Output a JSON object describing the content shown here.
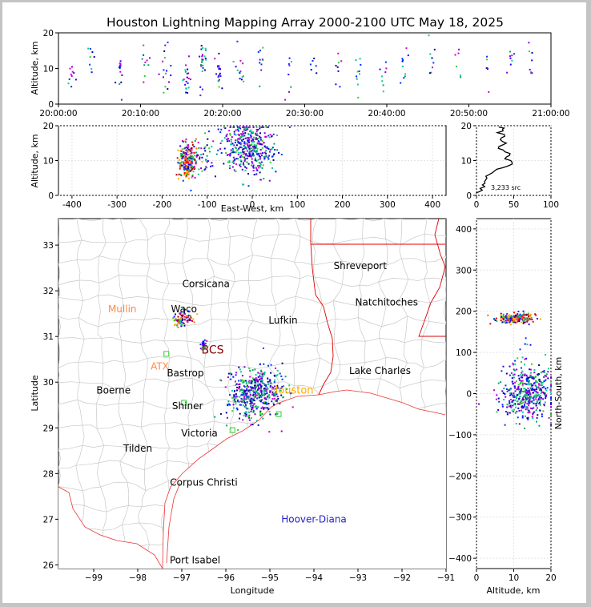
{
  "title": "Houston Lightning Mapping Array 2000-2100 UTC May 18, 2025",
  "colors": {
    "border": "#c4c4c4",
    "county": "#c8c8c8",
    "state": "#dd0000",
    "coast": "#ee2222",
    "grid": "#dddddd",
    "stations_green": "#33cc33",
    "stations_orange": "#ff8844",
    "hoover": "#2222cc",
    "source_palette": [
      "#2200ff",
      "#0033ff",
      "#00aa66",
      "#00cc99",
      "#33cc33",
      "#000099",
      "#8800cc",
      "#cc00cc",
      "#ff6600",
      "#ff0000",
      "#aa0000",
      "#ffaa00"
    ]
  },
  "chart_data": [
    {
      "id": "time-height",
      "type": "scatter",
      "xlabel": "",
      "ylabel": "Altitude, km",
      "ylim": [
        0,
        20
      ],
      "yticks": [
        0,
        10,
        20
      ],
      "xticks": [
        "20:00:00",
        "20:10:00",
        "20:20:00",
        "20:30:00",
        "20:40:00",
        "20:50:00",
        "21:00:00"
      ],
      "xlim_minutes": [
        0,
        60
      ],
      "clusters": [
        {
          "t": 1.5,
          "alt": 8,
          "n": 10
        },
        {
          "t": 4,
          "alt": 12,
          "n": 8
        },
        {
          "t": 7.5,
          "alt": 9,
          "n": 14
        },
        {
          "t": 10.5,
          "alt": 12,
          "n": 10
        },
        {
          "t": 13,
          "alt": 10,
          "n": 16
        },
        {
          "t": 15.5,
          "alt": 9,
          "n": 20
        },
        {
          "t": 17.5,
          "alt": 11,
          "n": 24
        },
        {
          "t": 19.5,
          "alt": 9,
          "n": 20
        },
        {
          "t": 22,
          "alt": 12,
          "n": 14
        },
        {
          "t": 24.5,
          "alt": 11,
          "n": 10
        },
        {
          "t": 28,
          "alt": 10,
          "n": 8
        },
        {
          "t": 31,
          "alt": 12,
          "n": 6
        },
        {
          "t": 34,
          "alt": 12,
          "n": 8
        },
        {
          "t": 36.5,
          "alt": 9,
          "n": 10
        },
        {
          "t": 39.5,
          "alt": 10,
          "n": 8
        },
        {
          "t": 42,
          "alt": 11,
          "n": 10
        },
        {
          "t": 45.5,
          "alt": 12,
          "n": 8
        },
        {
          "t": 48.5,
          "alt": 13,
          "n": 6
        },
        {
          "t": 52,
          "alt": 10,
          "n": 6
        },
        {
          "t": 55,
          "alt": 12,
          "n": 8
        },
        {
          "t": 57.5,
          "alt": 11,
          "n": 8
        }
      ]
    },
    {
      "id": "ew-altitude",
      "type": "scatter",
      "xlabel": "East-West, km",
      "ylabel": "Altitude, km",
      "xlim": [
        -430,
        430
      ],
      "ylim": [
        0,
        20
      ],
      "xticks": [
        -400,
        -300,
        -200,
        -100,
        0,
        100,
        200,
        300,
        400
      ],
      "yticks": [
        0,
        10,
        20
      ],
      "clusters": [
        {
          "x": -145,
          "alt": 10,
          "sx": 10,
          "sy": 2.5,
          "n": 220,
          "hot": true
        },
        {
          "x": -110,
          "alt": 12,
          "sx": 12,
          "sy": 3,
          "n": 40
        },
        {
          "x": -10,
          "alt": 14,
          "sx": 28,
          "sy": 4,
          "n": 420
        }
      ]
    },
    {
      "id": "altitude-histogram",
      "type": "line",
      "xlim": [
        0,
        100
      ],
      "ylim": [
        0,
        20
      ],
      "xticks": [
        0,
        50,
        100
      ],
      "yticks": [
        0,
        10,
        20
      ],
      "profile": [
        [
          0,
          0.5
        ],
        [
          3,
          1
        ],
        [
          5,
          2
        ],
        [
          8,
          3
        ],
        [
          11,
          4
        ],
        [
          14,
          5
        ],
        [
          17,
          6
        ],
        [
          24,
          7
        ],
        [
          36,
          8
        ],
        [
          48,
          9
        ],
        [
          46,
          10
        ],
        [
          40,
          11
        ],
        [
          45,
          12
        ],
        [
          36,
          13
        ],
        [
          30,
          14
        ],
        [
          40,
          15
        ],
        [
          32,
          16
        ],
        [
          38,
          17
        ],
        [
          28,
          18
        ],
        [
          35,
          19
        ],
        [
          30,
          19.6
        ]
      ],
      "annotation": "3,233 src"
    },
    {
      "id": "plan-view",
      "type": "scatter",
      "xlabel": "Longitude",
      "ylabel": "Latitude",
      "xlim": [
        -99.8,
        -91.0
      ],
      "ylim": [
        25.92,
        33.58
      ],
      "xticks": [
        -99,
        -98,
        -97,
        -96,
        -95,
        -94,
        -93,
        -92,
        -91
      ],
      "yticks": [
        26,
        27,
        28,
        29,
        30,
        31,
        32,
        33
      ],
      "clusters": [
        {
          "lon": -97.0,
          "lat": 31.4,
          "sx": 0.1,
          "sy": 0.07,
          "n": 90,
          "hot": true
        },
        {
          "lon": -96.52,
          "lat": 30.85,
          "sx": 0.03,
          "sy": 0.05,
          "n": 20
        },
        {
          "lon": -95.4,
          "lat": 29.75,
          "sx": 0.3,
          "sy": 0.28,
          "n": 460
        },
        {
          "lon": -95.0,
          "lat": 29.9,
          "sx": 0.15,
          "sy": 0.2,
          "n": 40
        }
      ],
      "places": [
        {
          "name": "Shreveport",
          "lon": -92.95,
          "lat": 32.55,
          "color": "#000000"
        },
        {
          "name": "Corsicana",
          "lon": -96.45,
          "lat": 32.15,
          "color": "#000000"
        },
        {
          "name": "Natchitoches",
          "lon": -92.35,
          "lat": 31.75,
          "color": "#000000"
        },
        {
          "name": "Mullin",
          "lon": -98.35,
          "lat": 31.6,
          "color": "#ff8844"
        },
        {
          "name": "Waco",
          "lon": -96.95,
          "lat": 31.6,
          "color": "#000000"
        },
        {
          "name": "Lufkin",
          "lon": -94.7,
          "lat": 31.35,
          "color": "#000000"
        },
        {
          "name": "BCS",
          "lon": -96.3,
          "lat": 30.7,
          "color": "#880000"
        },
        {
          "name": "ATX",
          "lon": -97.5,
          "lat": 30.35,
          "color": "#ff8844"
        },
        {
          "name": "Bastrop",
          "lon": -96.92,
          "lat": 30.2,
          "color": "#000000"
        },
        {
          "name": "Lake Charles",
          "lon": -92.5,
          "lat": 30.25,
          "color": "#000000"
        },
        {
          "name": "Boerne",
          "lon": -98.55,
          "lat": 29.82,
          "color": "#000000"
        },
        {
          "name": "Houston",
          "lon": -94.5,
          "lat": 29.82,
          "color": "#ffaa00"
        },
        {
          "name": "Shiner",
          "lon": -96.87,
          "lat": 29.48,
          "color": "#000000"
        },
        {
          "name": "Victoria",
          "lon": -96.6,
          "lat": 28.88,
          "color": "#000000"
        },
        {
          "name": "Tilden",
          "lon": -98.0,
          "lat": 28.55,
          "color": "#000000"
        },
        {
          "name": "Corpus Christi",
          "lon": -96.5,
          "lat": 27.8,
          "color": "#000000"
        },
        {
          "name": "Hoover-Diana",
          "lon": -94.0,
          "lat": 27.0,
          "color": "#2222cc"
        },
        {
          "name": "Port Isabel",
          "lon": -96.7,
          "lat": 26.1,
          "color": "#000000"
        }
      ]
    },
    {
      "id": "altitude-ns",
      "type": "scatter",
      "xlabel": "Altitude, km",
      "ylabel": "North-South, km",
      "xlim": [
        0,
        20
      ],
      "ylim": [
        -425,
        425
      ],
      "xticks": [
        0,
        10,
        20
      ],
      "yticks": [
        -400,
        -300,
        -200,
        -100,
        0,
        100,
        200,
        300,
        400
      ],
      "clusters": [
        {
          "alt": 10.5,
          "y": 185,
          "sx": 2.5,
          "sy": 6,
          "n": 200,
          "hot": true
        },
        {
          "alt": 12,
          "y": 100,
          "sx": 2,
          "sy": 20,
          "n": 15
        },
        {
          "alt": 13.5,
          "y": 0,
          "sx": 3.5,
          "sy": 30,
          "n": 450
        }
      ]
    }
  ]
}
